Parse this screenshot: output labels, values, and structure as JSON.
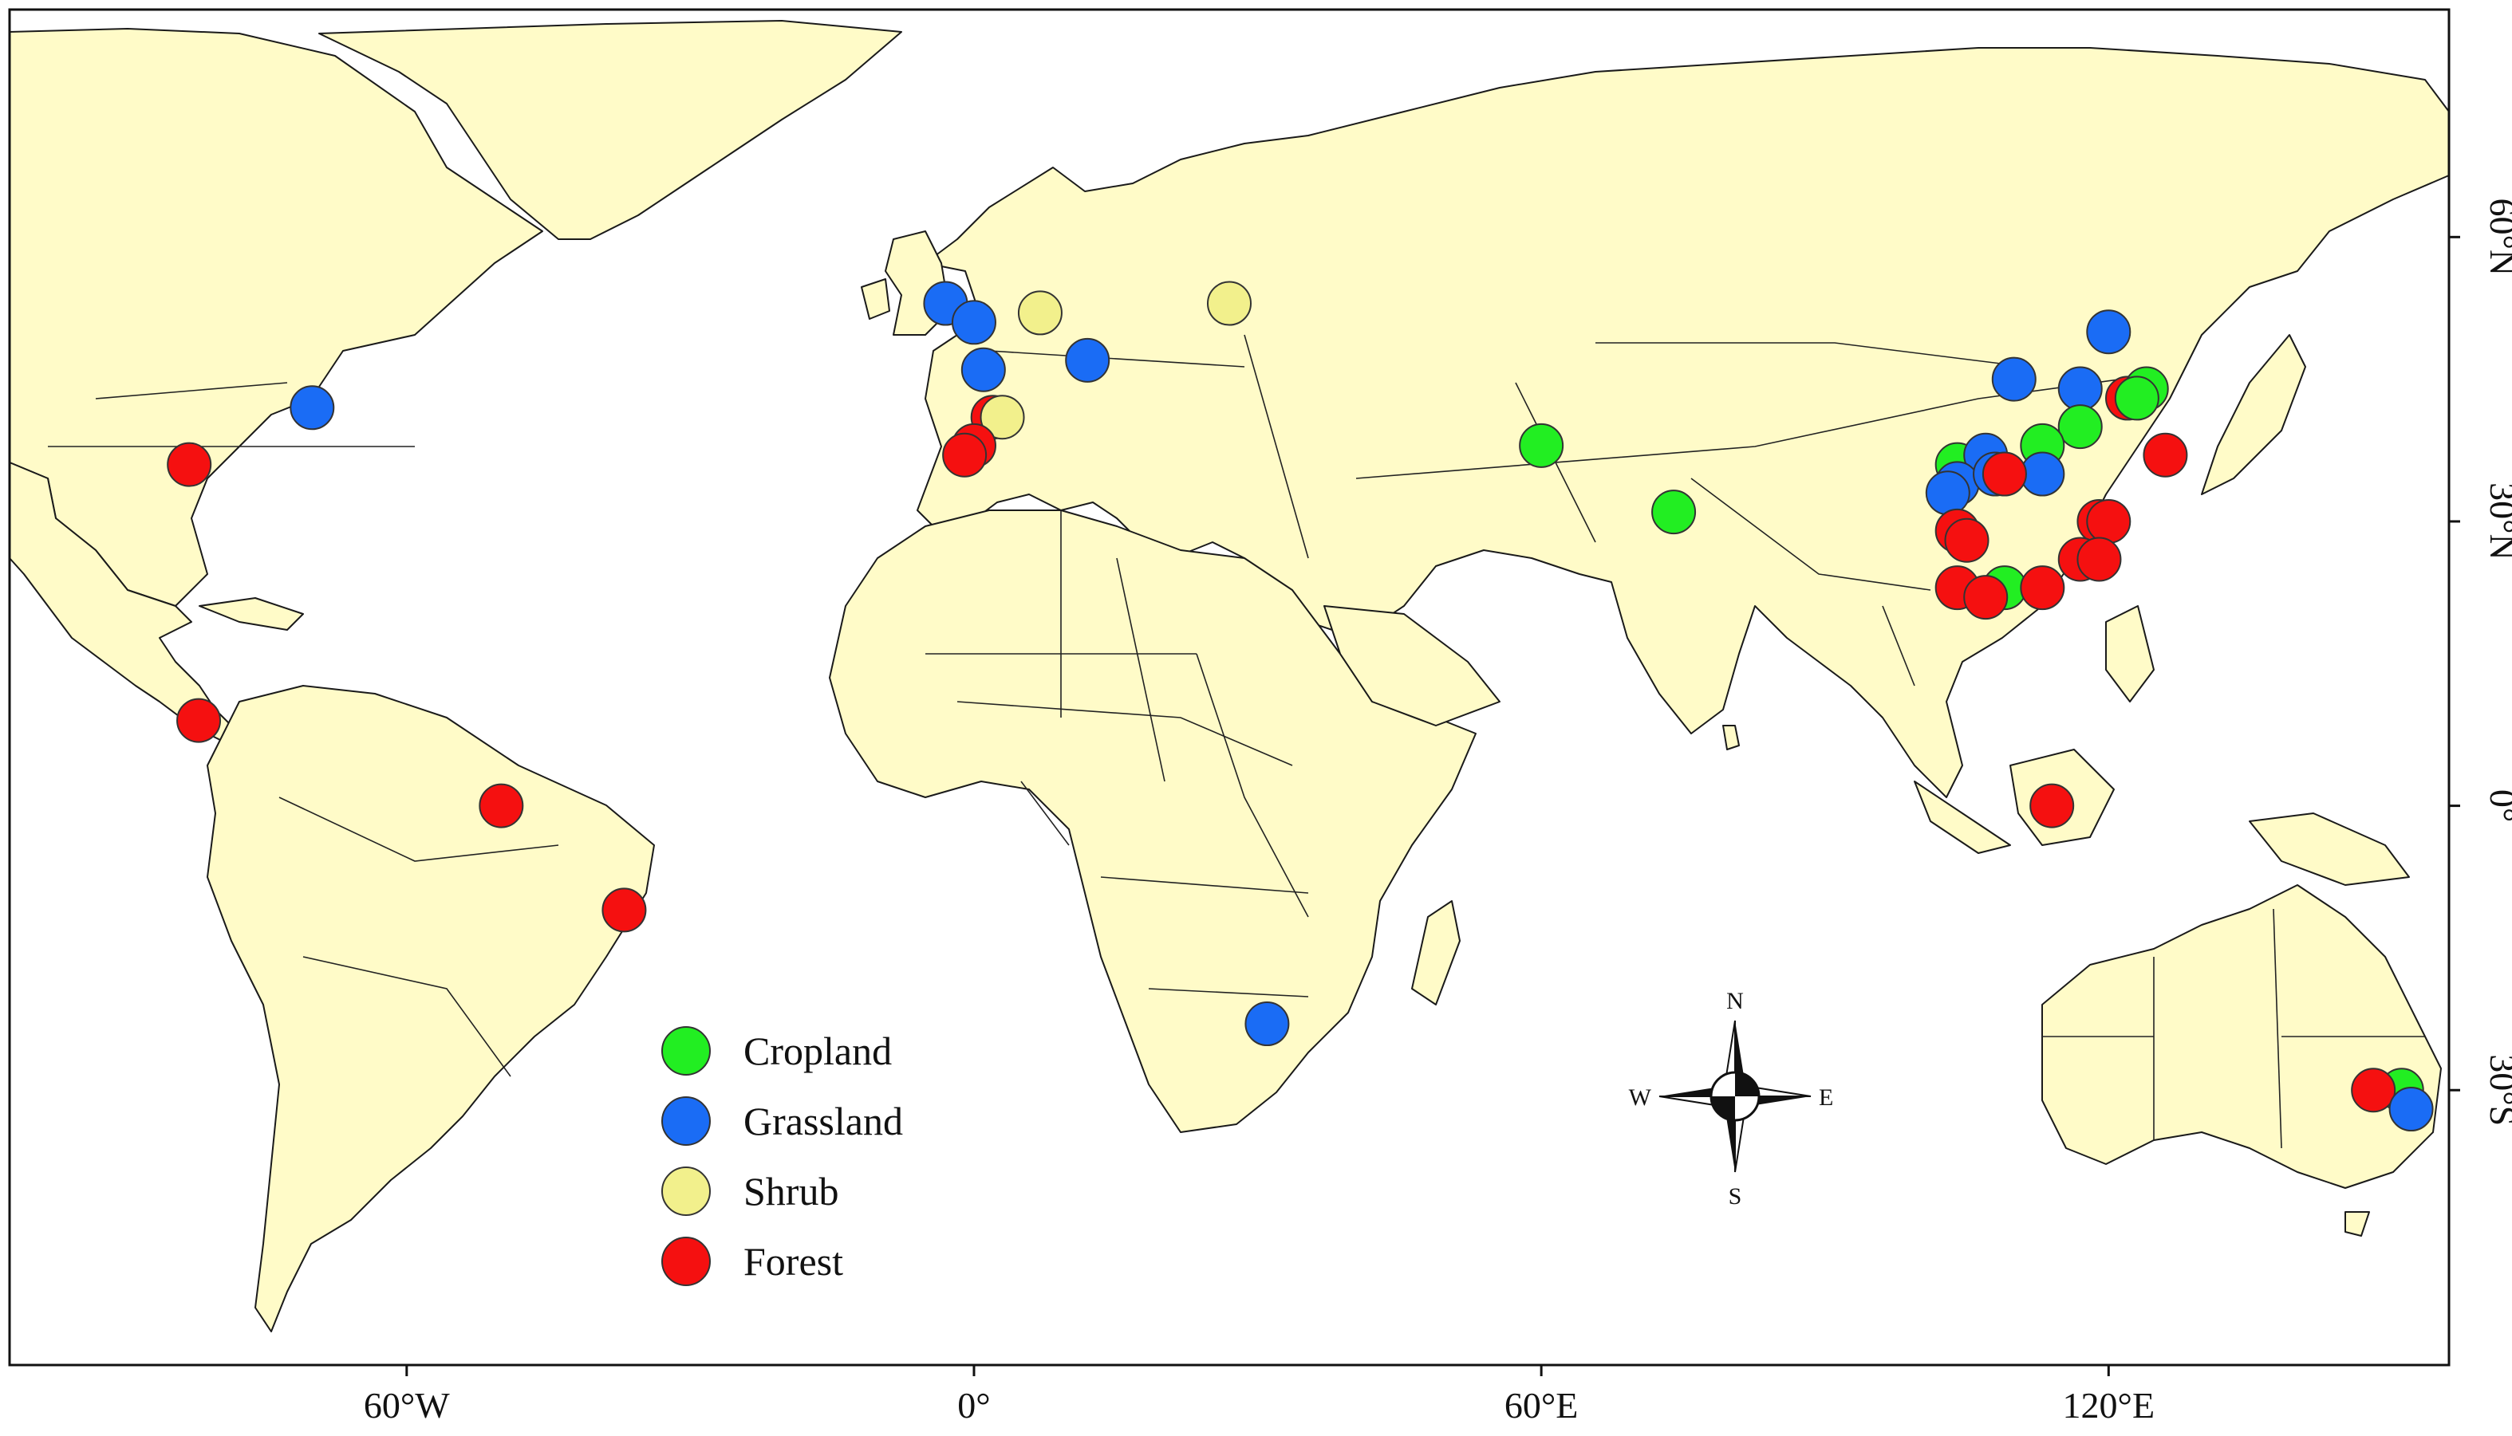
{
  "axes": {
    "x_ticks": [
      {
        "lon": -60,
        "label": "60°W"
      },
      {
        "lon": 0,
        "label": "0°"
      },
      {
        "lon": 60,
        "label": "60°E"
      },
      {
        "lon": 120,
        "label": "120°E"
      }
    ],
    "y_ticks": [
      {
        "lat": 60,
        "label": "60°N"
      },
      {
        "lat": 30,
        "label": "30°N"
      },
      {
        "lat": 0,
        "label": "0°"
      },
      {
        "lat": -30,
        "label": "30°S"
      }
    ],
    "lon_range": [
      -102,
      156
    ],
    "lat_range": [
      -59,
      84
    ]
  },
  "colors": {
    "land": "#FFFBC8",
    "ocean": "#FFFFFF",
    "cropland": "#22EE22",
    "grassland": "#1A6CF5",
    "shrub": "#F2F08C",
    "forest": "#F51010"
  },
  "legend": {
    "items": [
      {
        "key": "cropland",
        "label": "Cropland"
      },
      {
        "key": "grassland",
        "label": "Grassland"
      },
      {
        "key": "shrub",
        "label": "Shrub"
      },
      {
        "key": "forest",
        "label": "Forest"
      }
    ]
  },
  "compass": {
    "n": "N",
    "s": "S",
    "e": "E",
    "w": "W"
  },
  "sites": [
    {
      "type": "forest",
      "lon": -83,
      "lat": 36
    },
    {
      "type": "grassland",
      "lon": -70,
      "lat": 42
    },
    {
      "type": "forest",
      "lon": -82,
      "lat": 9
    },
    {
      "type": "forest",
      "lon": -50,
      "lat": 0
    },
    {
      "type": "forest",
      "lon": -37,
      "lat": -11
    },
    {
      "type": "grassland",
      "lon": -3,
      "lat": 53
    },
    {
      "type": "grassland",
      "lon": 0,
      "lat": 51
    },
    {
      "type": "grassland",
      "lon": 1,
      "lat": 46
    },
    {
      "type": "shrub",
      "lon": 7,
      "lat": 52
    },
    {
      "type": "shrub",
      "lon": 27,
      "lat": 53
    },
    {
      "type": "grassland",
      "lon": 12,
      "lat": 47
    },
    {
      "type": "forest",
      "lon": 2,
      "lat": 41
    },
    {
      "type": "shrub",
      "lon": 3,
      "lat": 41
    },
    {
      "type": "forest",
      "lon": 0,
      "lat": 38
    },
    {
      "type": "forest",
      "lon": -1,
      "lat": 37
    },
    {
      "type": "grassland",
      "lon": 31,
      "lat": -23
    },
    {
      "type": "cropland",
      "lon": 60,
      "lat": 38
    },
    {
      "type": "cropland",
      "lon": 74,
      "lat": 31
    },
    {
      "type": "grassland",
      "lon": 120,
      "lat": 50
    },
    {
      "type": "grassland",
      "lon": 110,
      "lat": 45
    },
    {
      "type": "grassland",
      "lon": 117,
      "lat": 44
    },
    {
      "type": "forest",
      "lon": 122,
      "lat": 43
    },
    {
      "type": "cropland",
      "lon": 124,
      "lat": 44
    },
    {
      "type": "cropland",
      "lon": 123,
      "lat": 43
    },
    {
      "type": "cropland",
      "lon": 117,
      "lat": 40
    },
    {
      "type": "cropland",
      "lon": 113,
      "lat": 38
    },
    {
      "type": "cropland",
      "lon": 104,
      "lat": 36
    },
    {
      "type": "grassland",
      "lon": 107,
      "lat": 37
    },
    {
      "type": "grassland",
      "lon": 104,
      "lat": 34
    },
    {
      "type": "grassland",
      "lon": 103,
      "lat": 33
    },
    {
      "type": "grassland",
      "lon": 108,
      "lat": 35
    },
    {
      "type": "grassland",
      "lon": 113,
      "lat": 35
    },
    {
      "type": "forest",
      "lon": 109,
      "lat": 35
    },
    {
      "type": "forest",
      "lon": 126,
      "lat": 37
    },
    {
      "type": "forest",
      "lon": 104,
      "lat": 29
    },
    {
      "type": "forest",
      "lon": 105,
      "lat": 28
    },
    {
      "type": "forest",
      "lon": 119,
      "lat": 30
    },
    {
      "type": "forest",
      "lon": 120,
      "lat": 30
    },
    {
      "type": "forest",
      "lon": 117,
      "lat": 26
    },
    {
      "type": "forest",
      "lon": 119,
      "lat": 26
    },
    {
      "type": "cropland",
      "lon": 109,
      "lat": 23
    },
    {
      "type": "forest",
      "lon": 104,
      "lat": 23
    },
    {
      "type": "forest",
      "lon": 107,
      "lat": 22
    },
    {
      "type": "forest",
      "lon": 113,
      "lat": 23
    },
    {
      "type": "forest",
      "lon": 114,
      "lat": 0
    },
    {
      "type": "cropland",
      "lon": 151,
      "lat": -30
    },
    {
      "type": "forest",
      "lon": 148,
      "lat": -30
    },
    {
      "type": "grassland",
      "lon": 152,
      "lat": -32
    }
  ]
}
